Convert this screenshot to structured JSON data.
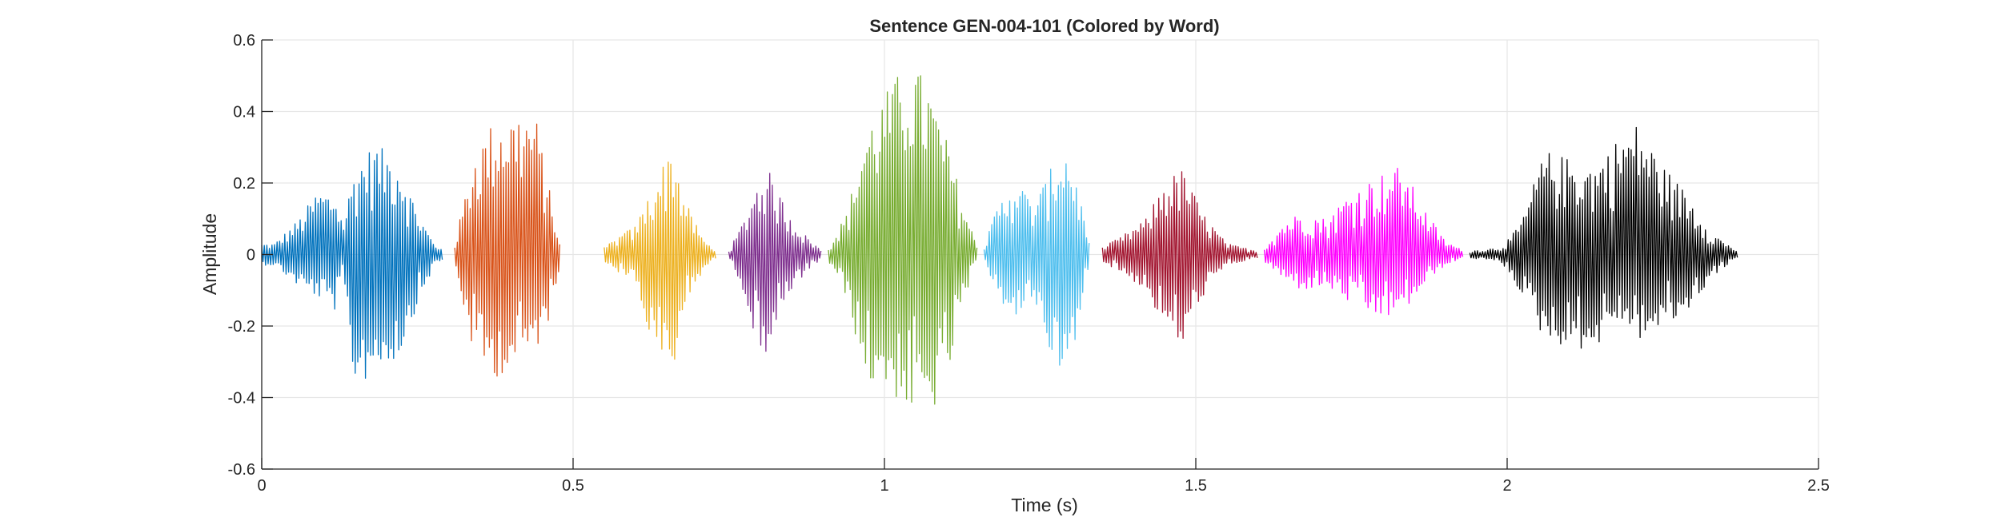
{
  "chart_data": {
    "type": "line",
    "title": "Sentence GEN-004-101 (Colored by Word)",
    "xlabel": "Time (s)",
    "ylabel": "Amplitude",
    "xlim": [
      0,
      2.5
    ],
    "ylim": [
      -0.6,
      0.6
    ],
    "x_ticks": [
      0,
      0.5,
      1,
      1.5,
      2,
      2.5
    ],
    "x_tick_labels": [
      "0",
      "0.5",
      "1",
      "1.5",
      "2",
      "2.5"
    ],
    "y_ticks": [
      -0.6,
      -0.4,
      -0.2,
      0,
      0.2,
      0.4,
      0.6
    ],
    "y_tick_labels": [
      "-0.6",
      "-0.4",
      "-0.2",
      "0",
      "0.2",
      "0.4",
      "0.6"
    ],
    "grid": true,
    "series": [
      {
        "color": "#0072BD",
        "x": [
          0,
          0.29
        ],
        "envelope": [
          [
            0.02,
            0.03,
            -0.03
          ],
          [
            0.06,
            0.1,
            -0.09
          ],
          [
            0.09,
            0.18,
            -0.12
          ],
          [
            0.12,
            0.17,
            -0.16
          ],
          [
            0.13,
            0.09,
            -0.07
          ],
          [
            0.15,
            0.25,
            -0.38
          ],
          [
            0.18,
            0.31,
            -0.33
          ],
          [
            0.22,
            0.27,
            -0.29
          ],
          [
            0.25,
            0.12,
            -0.14
          ],
          [
            0.28,
            0.02,
            -0.02
          ]
        ]
      },
      {
        "color": "#D95319",
        "x": [
          0.31,
          0.48
        ],
        "envelope": [
          [
            0.31,
            0.03,
            -0.03
          ],
          [
            0.34,
            0.28,
            -0.28
          ],
          [
            0.37,
            0.37,
            -0.35
          ],
          [
            0.41,
            0.4,
            -0.31
          ],
          [
            0.44,
            0.39,
            -0.27
          ],
          [
            0.46,
            0.2,
            -0.19
          ],
          [
            0.48,
            0.02,
            -0.02
          ]
        ]
      },
      {
        "color": "#EDB120",
        "x": [
          0.55,
          0.73
        ],
        "envelope": [
          [
            0.55,
            0.02,
            -0.02
          ],
          [
            0.58,
            0.06,
            -0.06
          ],
          [
            0.6,
            0.08,
            -0.07
          ],
          [
            0.63,
            0.2,
            -0.29
          ],
          [
            0.66,
            0.31,
            -0.35
          ],
          [
            0.68,
            0.15,
            -0.14
          ],
          [
            0.71,
            0.04,
            -0.04
          ],
          [
            0.73,
            0.01,
            -0.01
          ]
        ]
      },
      {
        "color": "#7E2F8E",
        "x": [
          0.75,
          0.9
        ],
        "envelope": [
          [
            0.75,
            0.01,
            -0.01
          ],
          [
            0.77,
            0.08,
            -0.08
          ],
          [
            0.79,
            0.18,
            -0.22
          ],
          [
            0.81,
            0.25,
            -0.28
          ],
          [
            0.84,
            0.14,
            -0.14
          ],
          [
            0.87,
            0.06,
            -0.06
          ],
          [
            0.9,
            0.01,
            -0.01
          ]
        ]
      },
      {
        "color": "#77AC30",
        "x": [
          0.91,
          1.15
        ],
        "envelope": [
          [
            0.91,
            0.02,
            -0.02
          ],
          [
            0.94,
            0.12,
            -0.12
          ],
          [
            0.97,
            0.35,
            -0.36
          ],
          [
            1.0,
            0.45,
            -0.37
          ],
          [
            1.04,
            0.55,
            -0.44
          ],
          [
            1.07,
            0.48,
            -0.47
          ],
          [
            1.1,
            0.32,
            -0.36
          ],
          [
            1.13,
            0.12,
            -0.12
          ],
          [
            1.15,
            0.02,
            -0.02
          ]
        ]
      },
      {
        "color": "#4DBEEE",
        "x": [
          1.16,
          1.33
        ],
        "envelope": [
          [
            1.16,
            0.02,
            -0.02
          ],
          [
            1.18,
            0.13,
            -0.12
          ],
          [
            1.21,
            0.22,
            -0.18
          ],
          [
            1.24,
            0.14,
            -0.12
          ],
          [
            1.27,
            0.25,
            -0.3
          ],
          [
            1.29,
            0.31,
            -0.34
          ],
          [
            1.31,
            0.2,
            -0.22
          ],
          [
            1.33,
            0.02,
            -0.02
          ]
        ]
      },
      {
        "color": "#A2142F",
        "x": [
          1.35,
          1.6
        ],
        "envelope": [
          [
            1.35,
            0.02,
            -0.02
          ],
          [
            1.38,
            0.05,
            -0.05
          ],
          [
            1.42,
            0.1,
            -0.1
          ],
          [
            1.45,
            0.21,
            -0.21
          ],
          [
            1.48,
            0.24,
            -0.26
          ],
          [
            1.51,
            0.12,
            -0.12
          ],
          [
            1.55,
            0.03,
            -0.03
          ],
          [
            1.6,
            0.01,
            -0.01
          ]
        ]
      },
      {
        "color": "#FF00FF",
        "x": [
          1.61,
          1.93
        ],
        "envelope": [
          [
            1.61,
            0.02,
            -0.02
          ],
          [
            1.64,
            0.09,
            -0.07
          ],
          [
            1.67,
            0.12,
            -0.1
          ],
          [
            1.71,
            0.1,
            -0.09
          ],
          [
            1.75,
            0.18,
            -0.14
          ],
          [
            1.79,
            0.22,
            -0.18
          ],
          [
            1.83,
            0.25,
            -0.17
          ],
          [
            1.87,
            0.12,
            -0.08
          ],
          [
            1.9,
            0.04,
            -0.03
          ],
          [
            1.93,
            0.01,
            -0.01
          ]
        ]
      },
      {
        "color": "#000000",
        "x": [
          1.94,
          2.37
        ],
        "envelope": [
          [
            1.94,
            0.01,
            -0.01
          ],
          [
            1.99,
            0.02,
            -0.02
          ],
          [
            2.02,
            0.08,
            -0.1
          ],
          [
            2.06,
            0.29,
            -0.24
          ],
          [
            2.1,
            0.27,
            -0.26
          ],
          [
            2.14,
            0.25,
            -0.27
          ],
          [
            2.18,
            0.33,
            -0.18
          ],
          [
            2.21,
            0.37,
            -0.24
          ],
          [
            2.25,
            0.25,
            -0.21
          ],
          [
            2.29,
            0.17,
            -0.16
          ],
          [
            2.33,
            0.06,
            -0.06
          ],
          [
            2.37,
            0.01,
            -0.01
          ]
        ]
      }
    ]
  }
}
